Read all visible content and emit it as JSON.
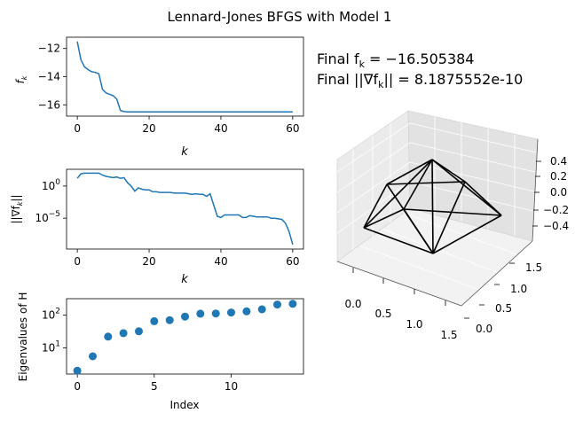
{
  "figure": {
    "title": "Lennard-Jones BFGS with Model 1",
    "summary": {
      "final_f_label": "Final f",
      "final_f_sub": "k",
      "final_f_value": " = −16.505384",
      "final_grad_label": "Final ||∇f",
      "final_grad_sub": "k",
      "final_grad_value": "|| = 8.1875552e-10"
    }
  },
  "chart_data": [
    {
      "type": "line",
      "ylabel": "f",
      "ylabel_sub": "k",
      "xlabel": "k",
      "xlim": [
        -3,
        63
      ],
      "ylim": [
        -16.8,
        -11.2
      ],
      "xticks": [
        0,
        20,
        40,
        60
      ],
      "yticks": [
        -12,
        -14,
        -16
      ],
      "ytick_labels": [
        "−12",
        "−14",
        "−16"
      ],
      "color": "#1f77b4",
      "x": [
        0,
        1,
        2,
        3,
        4,
        5,
        6,
        7,
        8,
        9,
        10,
        11,
        12,
        13,
        14,
        15,
        20,
        30,
        40,
        50,
        60
      ],
      "y": [
        -11.5,
        -12.8,
        -13.3,
        -13.5,
        -13.65,
        -13.7,
        -13.8,
        -14.9,
        -15.15,
        -15.25,
        -15.35,
        -15.6,
        -16.4,
        -16.48,
        -16.5,
        -16.505,
        -16.505,
        -16.505,
        -16.505,
        -16.505,
        -16.505
      ]
    },
    {
      "type": "line",
      "scale_y": "log",
      "ylabel": "||∇f",
      "ylabel_sub": "k",
      "ylabel_tail": "||",
      "xlabel": "k",
      "xlim": [
        -3,
        63
      ],
      "ylim_log10": [
        -9.8,
        2.6
      ],
      "xticks": [
        0,
        20,
        40,
        60
      ],
      "yticks_log10": [
        0,
        -5
      ],
      "ytick_labels": [
        "10^0",
        "10^-5"
      ],
      "color": "#1f77b4",
      "x": [
        0,
        1,
        2,
        3,
        4,
        5,
        6,
        7,
        8,
        9,
        10,
        11,
        12,
        13,
        14,
        15,
        16,
        17,
        18,
        19,
        20,
        21,
        22,
        23,
        24,
        25,
        26,
        27,
        28,
        29,
        30,
        31,
        32,
        33,
        34,
        35,
        36,
        37,
        38,
        39,
        40,
        41,
        42,
        43,
        44,
        45,
        46,
        47,
        48,
        49,
        50,
        51,
        52,
        53,
        54,
        55,
        56,
        57,
        58,
        59,
        60
      ],
      "y_log10": [
        1.2,
        1.9,
        2.0,
        2.0,
        2.0,
        2.0,
        2.0,
        1.7,
        1.5,
        1.4,
        1.3,
        1.4,
        1.2,
        1.3,
        0.5,
        0.0,
        -0.8,
        -0.3,
        -0.5,
        -0.6,
        -0.6,
        -0.9,
        -0.9,
        -1.0,
        -1.0,
        -1.0,
        -1.0,
        -1.1,
        -1.1,
        -1.1,
        -1.1,
        -1.2,
        -1.3,
        -1.2,
        -1.3,
        -1.3,
        -1.6,
        -1.2,
        -3.0,
        -4.7,
        -4.9,
        -4.5,
        -4.5,
        -4.5,
        -4.5,
        -4.5,
        -4.9,
        -4.9,
        -4.6,
        -4.7,
        -4.8,
        -4.8,
        -4.8,
        -4.8,
        -5.0,
        -5.0,
        -5.1,
        -5.2,
        -5.8,
        -7.1,
        -9.1
      ]
    },
    {
      "type": "scatter",
      "scale_y": "log",
      "ylabel": "Eigenvalues of H",
      "xlabel": "Index",
      "xlim": [
        -0.7,
        14.7
      ],
      "ylim_log10": [
        0.2,
        2.5
      ],
      "xticks": [
        0,
        5,
        10
      ],
      "yticks_log10": [
        1,
        2
      ],
      "ytick_labels": [
        "10^1",
        "10^2"
      ],
      "color": "#1f77b4",
      "x": [
        0,
        1,
        2,
        3,
        4,
        5,
        6,
        7,
        8,
        9,
        10,
        11,
        12,
        13,
        14
      ],
      "y": [
        2,
        5.5,
        22,
        28,
        32,
        65,
        70,
        90,
        110,
        112,
        120,
        130,
        150,
        210,
        220
      ]
    },
    {
      "type": "line3d",
      "color": "#000000",
      "x_ticks": [
        0.0,
        0.5,
        1.0,
        1.5
      ],
      "x_tick_labels": [
        "0.0",
        "0.5",
        "1.0",
        "1.5"
      ],
      "y_ticks": [
        0.0,
        0.5,
        1.0,
        1.5
      ],
      "y_tick_labels": [
        "0.0",
        "0.5",
        "1.0",
        "1.5"
      ],
      "z_ticks": [
        0.4,
        0.2,
        0.0,
        -0.2,
        -0.4
      ],
      "z_tick_labels": [
        "0.4",
        "0.2",
        "0.0",
        "−0.2",
        "−0.4"
      ]
    }
  ]
}
